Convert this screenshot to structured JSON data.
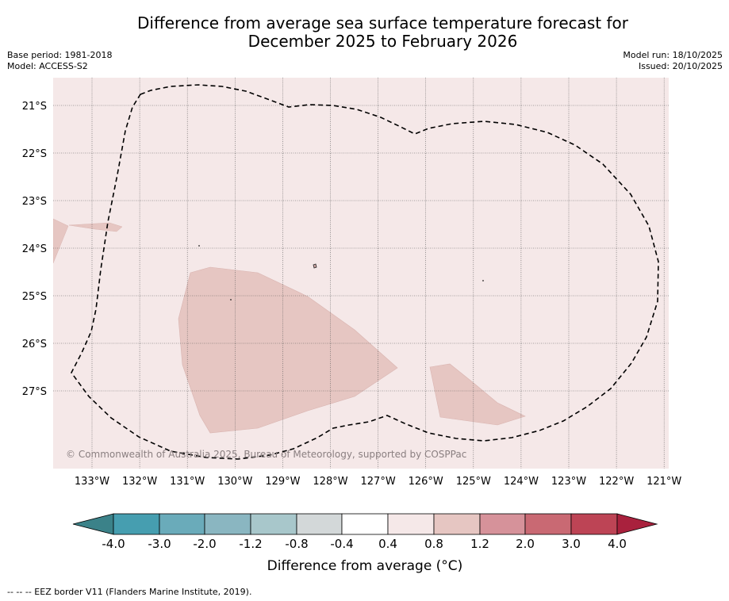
{
  "title_line1": "Difference from average sea surface temperature forecast for",
  "title_line2": "December 2025 to February 2026",
  "meta_left": {
    "base_period": "Base period: 1981-2018",
    "model": "Model: ACCESS-S2"
  },
  "meta_right": {
    "model_run": "Model run: 18/10/2025",
    "issued": "Issued: 20/10/2025"
  },
  "map": {
    "lat_labels": [
      "21°S",
      "22°S",
      "23°S",
      "24°S",
      "25°S",
      "26°S",
      "27°S"
    ],
    "lon_labels": [
      "133°W",
      "132°W",
      "131°W",
      "130°W",
      "129°W",
      "128°W",
      "127°W",
      "126°W",
      "125°W",
      "124°W",
      "123°W",
      "122°W",
      "121°W"
    ],
    "background_anomaly_band": "0.4 to 0.8",
    "copyright": "© Commonwealth of Australia 2025, Bureau of Meteorology, supported by COSPPac",
    "colors": {
      "band_04_08": "#f5e8e8",
      "band_08_12": "#e6c6c2",
      "eez_border": "#000000"
    }
  },
  "colorbar": {
    "boundaries": [
      "-4.0",
      "-3.0",
      "-2.0",
      "-1.2",
      "-0.8",
      "-0.4",
      "0.4",
      "0.8",
      "1.2",
      "2.0",
      "3.0",
      "4.0"
    ],
    "colors": [
      "#469eb0",
      "#6aabba",
      "#8ab6c1",
      "#a8c7cb",
      "#d3d8d9",
      "#ffffff",
      "#f5e8e8",
      "#e6c6c2",
      "#d6929a",
      "#c96973",
      "#bd4455"
    ],
    "under_color": "#3b8289",
    "over_color": "#a9213d",
    "title": "Difference from average ($^\\circ$C)",
    "title_display": "Difference from average (°C)"
  },
  "footnote": "--  --  -- EEZ border V11 (Flanders Marine Institute, 2019)."
}
